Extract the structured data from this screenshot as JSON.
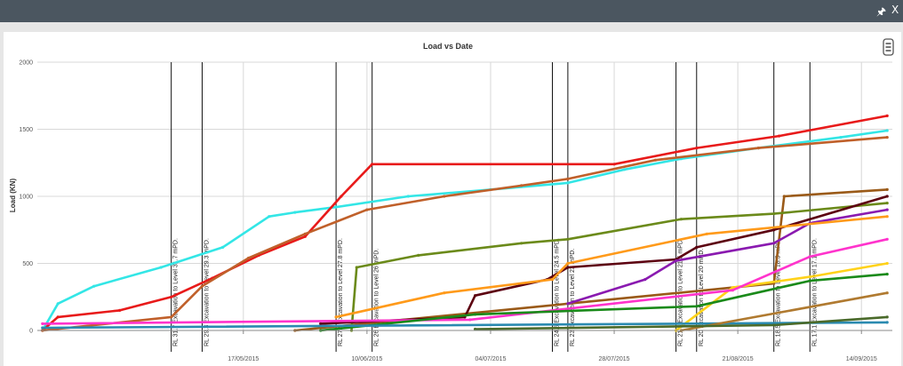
{
  "window": {
    "pin_icon": "pin-icon",
    "close_label": "X"
  },
  "menu_icon": "hamburger-menu-icon",
  "chart_data": {
    "type": "line",
    "title": "Load vs Date",
    "xlabel": "",
    "ylabel": "Load (KN)",
    "x_axis": "date",
    "xlim": [
      "2015-04-07",
      "2015-09-20"
    ],
    "ylim": [
      0,
      2000
    ],
    "yticks": [
      0,
      500,
      1000,
      1500,
      2000
    ],
    "xticks": [
      "17/05/2015",
      "10/06/2015",
      "04/07/2015",
      "28/07/2015",
      "21/08/2015",
      "14/09/2015"
    ],
    "grid": true,
    "annotations": [
      {
        "date": "2015-05-03",
        "label": "RL 31.7 Excavation to Level 31.7 mPD."
      },
      {
        "date": "2015-05-09",
        "label": "RL 29.3 Excavation to Level 29.3 mPD."
      },
      {
        "date": "2015-06-04",
        "label": "RL 27.8 Excavation to Level 27.8 mPD."
      },
      {
        "date": "2015-06-11",
        "label": "RL 26 Excavation to Level 26 mPD."
      },
      {
        "date": "2015-07-16",
        "label": "RL 24.5 Excavation to Level 24.5 mPD."
      },
      {
        "date": "2015-07-19",
        "label": "RL 23 Excavation to Level 23 mPD."
      },
      {
        "date": "2015-08-09",
        "label": "RL 21.5 Excavation to Level 21.5 mPD."
      },
      {
        "date": "2015-08-13",
        "label": "RL 20 Excavation to Level 20 mPD."
      },
      {
        "date": "2015-08-28",
        "label": "RL 18.5 Excavation to Level 18.5 mPD."
      },
      {
        "date": "2015-09-04",
        "label": "RL 17.1 Excavation to Level 17.1 mPD."
      }
    ],
    "series": [
      {
        "color": "#33e6e6",
        "points": [
          [
            "2015-04-08",
            0
          ],
          [
            "2015-04-11",
            200
          ],
          [
            "2015-04-18",
            330
          ],
          [
            "2015-05-01",
            470
          ],
          [
            "2015-05-13",
            620
          ],
          [
            "2015-05-22",
            850
          ],
          [
            "2015-05-27",
            880
          ],
          [
            "2015-06-04",
            920
          ],
          [
            "2015-06-18",
            1000
          ],
          [
            "2015-07-04",
            1050
          ],
          [
            "2015-07-19",
            1100
          ],
          [
            "2015-07-30",
            1200
          ],
          [
            "2015-08-10",
            1280
          ],
          [
            "2015-08-25",
            1360
          ],
          [
            "2015-09-10",
            1440
          ],
          [
            "2015-09-19",
            1490
          ]
        ]
      },
      {
        "color": "#e81a1a",
        "points": [
          [
            "2015-04-08",
            0
          ],
          [
            "2015-04-11",
            100
          ],
          [
            "2015-04-23",
            150
          ],
          [
            "2015-05-03",
            250
          ],
          [
            "2015-05-11",
            390
          ],
          [
            "2015-05-20",
            560
          ],
          [
            "2015-05-29",
            700
          ],
          [
            "2015-06-05",
            1000
          ],
          [
            "2015-06-11",
            1240
          ],
          [
            "2015-07-28",
            1240
          ],
          [
            "2015-08-13",
            1360
          ],
          [
            "2015-08-29",
            1450
          ],
          [
            "2015-09-19",
            1600
          ]
        ]
      },
      {
        "color": "#c0602a",
        "points": [
          [
            "2015-04-08",
            0
          ],
          [
            "2015-05-03",
            100
          ],
          [
            "2015-05-09",
            330
          ],
          [
            "2015-05-18",
            540
          ],
          [
            "2015-05-29",
            720
          ],
          [
            "2015-06-10",
            900
          ],
          [
            "2015-06-25",
            1000
          ],
          [
            "2015-07-10",
            1080
          ],
          [
            "2015-07-19",
            1130
          ],
          [
            "2015-08-05",
            1270
          ],
          [
            "2015-08-25",
            1360
          ],
          [
            "2015-09-19",
            1440
          ]
        ]
      },
      {
        "color": "#9a5a18",
        "points": [
          [
            "2015-05-27",
            0
          ],
          [
            "2015-08-28",
            350
          ],
          [
            "2015-08-30",
            1000
          ],
          [
            "2015-09-19",
            1050
          ]
        ]
      },
      {
        "color": "#6b8a1a",
        "points": [
          [
            "2015-06-07",
            0
          ],
          [
            "2015-06-08",
            470
          ],
          [
            "2015-06-20",
            560
          ],
          [
            "2015-07-10",
            650
          ],
          [
            "2015-07-19",
            680
          ],
          [
            "2015-08-10",
            830
          ],
          [
            "2015-08-28",
            870
          ],
          [
            "2015-09-19",
            950
          ]
        ]
      },
      {
        "color": "#5c0010",
        "points": [
          [
            "2015-06-01",
            50
          ],
          [
            "2015-06-29",
            100
          ],
          [
            "2015-07-01",
            260
          ],
          [
            "2015-07-15",
            380
          ],
          [
            "2015-07-19",
            470
          ],
          [
            "2015-08-09",
            530
          ],
          [
            "2015-08-13",
            620
          ],
          [
            "2015-08-28",
            750
          ],
          [
            "2015-09-19",
            1000
          ]
        ]
      },
      {
        "color": "#8a1ab0",
        "points": [
          [
            "2015-07-19",
            200
          ],
          [
            "2015-08-03",
            380
          ],
          [
            "2015-08-09",
            520
          ],
          [
            "2015-08-28",
            650
          ],
          [
            "2015-09-04",
            800
          ],
          [
            "2015-09-19",
            900
          ]
        ]
      },
      {
        "color": "#ffd21a",
        "points": [
          [
            "2015-08-09",
            0
          ],
          [
            "2015-08-20",
            320
          ],
          [
            "2015-09-04",
            400
          ],
          [
            "2015-09-19",
            500
          ]
        ]
      },
      {
        "color": "#ff9a1a",
        "points": [
          [
            "2015-06-04",
            100
          ],
          [
            "2015-06-25",
            280
          ],
          [
            "2015-07-16",
            380
          ],
          [
            "2015-07-19",
            500
          ],
          [
            "2015-08-15",
            720
          ],
          [
            "2015-09-19",
            850
          ]
        ]
      },
      {
        "color": "#ff33cc",
        "points": [
          [
            "2015-04-08",
            50
          ],
          [
            "2015-06-30",
            80
          ],
          [
            "2015-08-20",
            300
          ],
          [
            "2015-09-04",
            550
          ],
          [
            "2015-09-19",
            680
          ]
        ]
      },
      {
        "color": "#1a8a1a",
        "points": [
          [
            "2015-06-01",
            0
          ],
          [
            "2015-07-01",
            120
          ],
          [
            "2015-08-13",
            180
          ],
          [
            "2015-09-04",
            370
          ],
          [
            "2015-09-19",
            420
          ]
        ]
      },
      {
        "color": "#2a8ab0",
        "points": [
          [
            "2015-04-08",
            20
          ],
          [
            "2015-09-19",
            60
          ]
        ]
      },
      {
        "color": "#b07a30",
        "points": [
          [
            "2015-08-10",
            0
          ],
          [
            "2015-09-19",
            280
          ]
        ]
      },
      {
        "color": "#4a6a2a",
        "points": [
          [
            "2015-07-01",
            10
          ],
          [
            "2015-08-28",
            40
          ],
          [
            "2015-09-19",
            100
          ]
        ]
      }
    ]
  }
}
